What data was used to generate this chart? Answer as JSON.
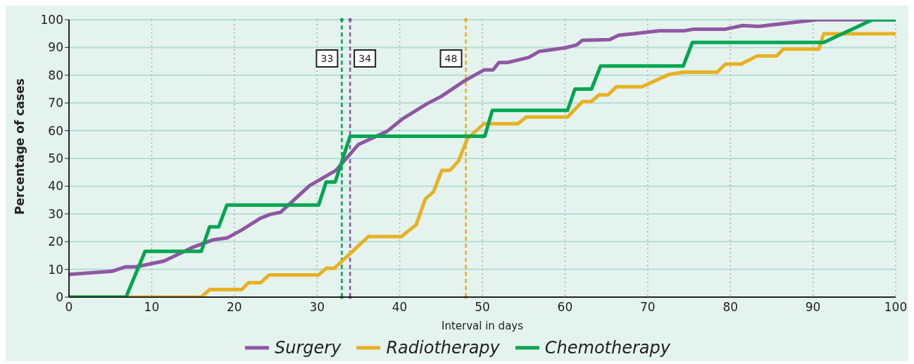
{
  "chart_data": {
    "type": "line",
    "xlabel": "Interval in days",
    "ylabel": "Percentage of cases",
    "xlim": [
      0,
      100
    ],
    "xticks": [
      0,
      10,
      20,
      30,
      40,
      50,
      60,
      70,
      80,
      90,
      100
    ],
    "ylim": [
      0,
      100
    ],
    "yticks": [
      0,
      10,
      20,
      30,
      40,
      50,
      60,
      70,
      80,
      90,
      100
    ],
    "grid": true,
    "legend": "bottom",
    "marker": "none",
    "line_style": "solid",
    "series": [
      {
        "name": "Surgery",
        "color": "#8e57a3",
        "x": [
          0,
          5.2,
          6.8,
          8.1,
          11.5,
          15,
          17.5,
          19.1,
          20.9,
          23.2,
          24.3,
          25.6,
          29.1,
          32.3,
          35,
          38.5,
          40.4,
          43.3,
          45,
          47.8,
          50.2,
          51.3,
          52,
          53.1,
          55.6,
          56.9,
          60.1,
          61.4,
          62.1,
          65.4,
          66.5,
          68.2,
          71.4,
          74.4,
          75.6,
          79.4,
          81.5,
          83.4,
          90.5,
          100
        ],
        "values": [
          8.2,
          9.3,
          10.9,
          10.9,
          13,
          18,
          20.7,
          21.3,
          24.2,
          28.5,
          29.8,
          30.6,
          40.2,
          45.7,
          55,
          59.8,
          64.4,
          69.7,
          72.3,
          77.9,
          81.9,
          81.9,
          84.6,
          84.6,
          86.4,
          88.6,
          89.9,
          90.9,
          92.6,
          92.8,
          94.4,
          94.9,
          96,
          96,
          96.6,
          96.6,
          97.9,
          97.6,
          100,
          100
        ]
      },
      {
        "name": "Radiotherapy",
        "color": "#e8b122",
        "x": [
          0,
          16,
          17,
          20.9,
          21.7,
          23.2,
          24.2,
          30.2,
          31.1,
          32.1,
          36.2,
          40.2,
          42,
          43.1,
          44.1,
          45.1,
          46.1,
          47.1,
          48.2,
          50.2,
          54.3,
          55.3,
          60.3,
          62.1,
          63.2,
          64.1,
          65.2,
          66.2,
          69.3,
          72.6,
          74.3,
          78.4,
          79.4,
          81.3,
          83.2,
          85.6,
          86.4,
          90.7,
          91.3,
          100
        ],
        "values": [
          0,
          0,
          2.7,
          2.7,
          5.2,
          5.2,
          8,
          8,
          10.4,
          10.4,
          21.8,
          21.8,
          26.1,
          35.4,
          38,
          45.7,
          45.7,
          49,
          57.2,
          62.5,
          62.5,
          64.9,
          64.9,
          70.5,
          70.5,
          72.9,
          72.9,
          75.8,
          75.8,
          80.3,
          81.1,
          81.1,
          84,
          84,
          86.9,
          86.9,
          89.4,
          89.4,
          94.9,
          94.9
        ]
      },
      {
        "name": "Chemotherapy",
        "color": "#00a651",
        "x": [
          0,
          6.9,
          9.2,
          16,
          17,
          18.1,
          19.1,
          30.2,
          31.1,
          32.2,
          34,
          50.3,
          51.2,
          60.3,
          61.2,
          63.2,
          64.3,
          74.3,
          75.4,
          91.3,
          97.2,
          100
        ],
        "values": [
          0,
          0,
          16.5,
          16.5,
          25.3,
          25.3,
          33.2,
          33.2,
          41.5,
          41.5,
          58,
          58,
          67.3,
          67.3,
          75,
          75,
          83.3,
          83.3,
          91.8,
          91.8,
          100,
          100
        ]
      }
    ],
    "ref_lines": [
      {
        "axis": "x",
        "value": 33,
        "label": "33",
        "color": "#00a651",
        "line_style": "dashed"
      },
      {
        "axis": "x",
        "value": 34,
        "label": "34",
        "color": "#8e57a3",
        "line_style": "dashed"
      },
      {
        "axis": "x",
        "value": 48,
        "label": "48",
        "color": "#e8b122",
        "line_style": "dashed"
      }
    ]
  }
}
